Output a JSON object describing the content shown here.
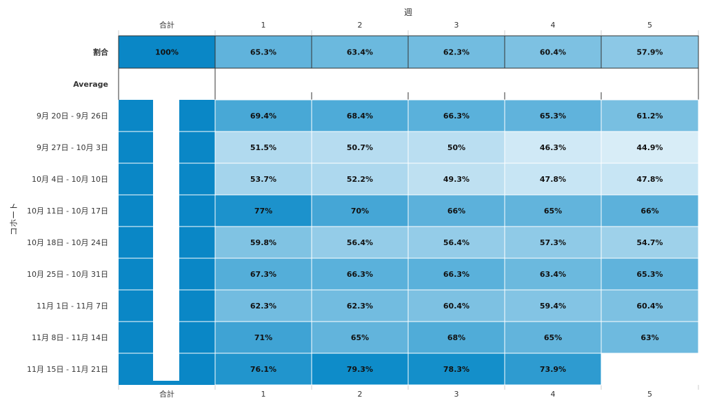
{
  "chart_data": {
    "type": "heatmap",
    "xlabel": "週",
    "ylabel": "コホート",
    "columns": [
      "合計",
      "1",
      "2",
      "3",
      "4",
      "5"
    ],
    "summary_rows": [
      {
        "label": "割合",
        "values": [
          "100%",
          "65.3%",
          "63.4%",
          "62.3%",
          "60.4%",
          "57.9%"
        ],
        "numeric": [
          100,
          65.3,
          63.4,
          62.3,
          60.4,
          57.9
        ]
      },
      {
        "label": "Average",
        "values": [
          "",
          "",
          "",
          "",
          "",
          ""
        ],
        "numeric": [
          null,
          null,
          null,
          null,
          null,
          null
        ]
      }
    ],
    "cohorts": [
      {
        "label": "9月 20日 - 9月 26日",
        "values": [
          "69.4%",
          "68.4%",
          "66.3%",
          "65.3%",
          "61.2%"
        ],
        "numeric": [
          69.4,
          68.4,
          66.3,
          65.3,
          61.2
        ]
      },
      {
        "label": "9月 27日 - 10月 3日",
        "values": [
          "51.5%",
          "50.7%",
          "50%",
          "46.3%",
          "44.9%"
        ],
        "numeric": [
          51.5,
          50.7,
          50,
          46.3,
          44.9
        ]
      },
      {
        "label": "10月 4日 - 10月 10日",
        "values": [
          "53.7%",
          "52.2%",
          "49.3%",
          "47.8%",
          "47.8%"
        ],
        "numeric": [
          53.7,
          52.2,
          49.3,
          47.8,
          47.8
        ]
      },
      {
        "label": "10月 11日 - 10月 17日",
        "values": [
          "77%",
          "70%",
          "66%",
          "65%",
          "66%"
        ],
        "numeric": [
          77,
          70,
          66,
          65,
          66
        ]
      },
      {
        "label": "10月 18日 - 10月 24日",
        "values": [
          "59.8%",
          "56.4%",
          "56.4%",
          "57.3%",
          "54.7%"
        ],
        "numeric": [
          59.8,
          56.4,
          56.4,
          57.3,
          54.7
        ]
      },
      {
        "label": "10月 25日 - 10月 31日",
        "values": [
          "67.3%",
          "66.3%",
          "66.3%",
          "63.4%",
          "65.3%"
        ],
        "numeric": [
          67.3,
          66.3,
          66.3,
          63.4,
          65.3
        ]
      },
      {
        "label": "11月 1日 - 11月 7日",
        "values": [
          "62.3%",
          "62.3%",
          "60.4%",
          "59.4%",
          "60.4%"
        ],
        "numeric": [
          62.3,
          62.3,
          60.4,
          59.4,
          60.4
        ]
      },
      {
        "label": "11月 8日 - 11月 14日",
        "values": [
          "71%",
          "65%",
          "68%",
          "65%",
          "63%"
        ],
        "numeric": [
          71,
          65,
          68,
          65,
          63
        ]
      },
      {
        "label": "11月 15日 - 11月 21日",
        "values": [
          "76.1%",
          "79.3%",
          "78.3%",
          "73.9%",
          ""
        ],
        "numeric": [
          76.1,
          79.3,
          78.3,
          73.9,
          null
        ]
      }
    ],
    "colors": {
      "total": "#0a87c6",
      "low": "#e3f2fa",
      "high": "#0a8ac8",
      "border": "#ffffff",
      "summary_border": "#333333"
    }
  }
}
